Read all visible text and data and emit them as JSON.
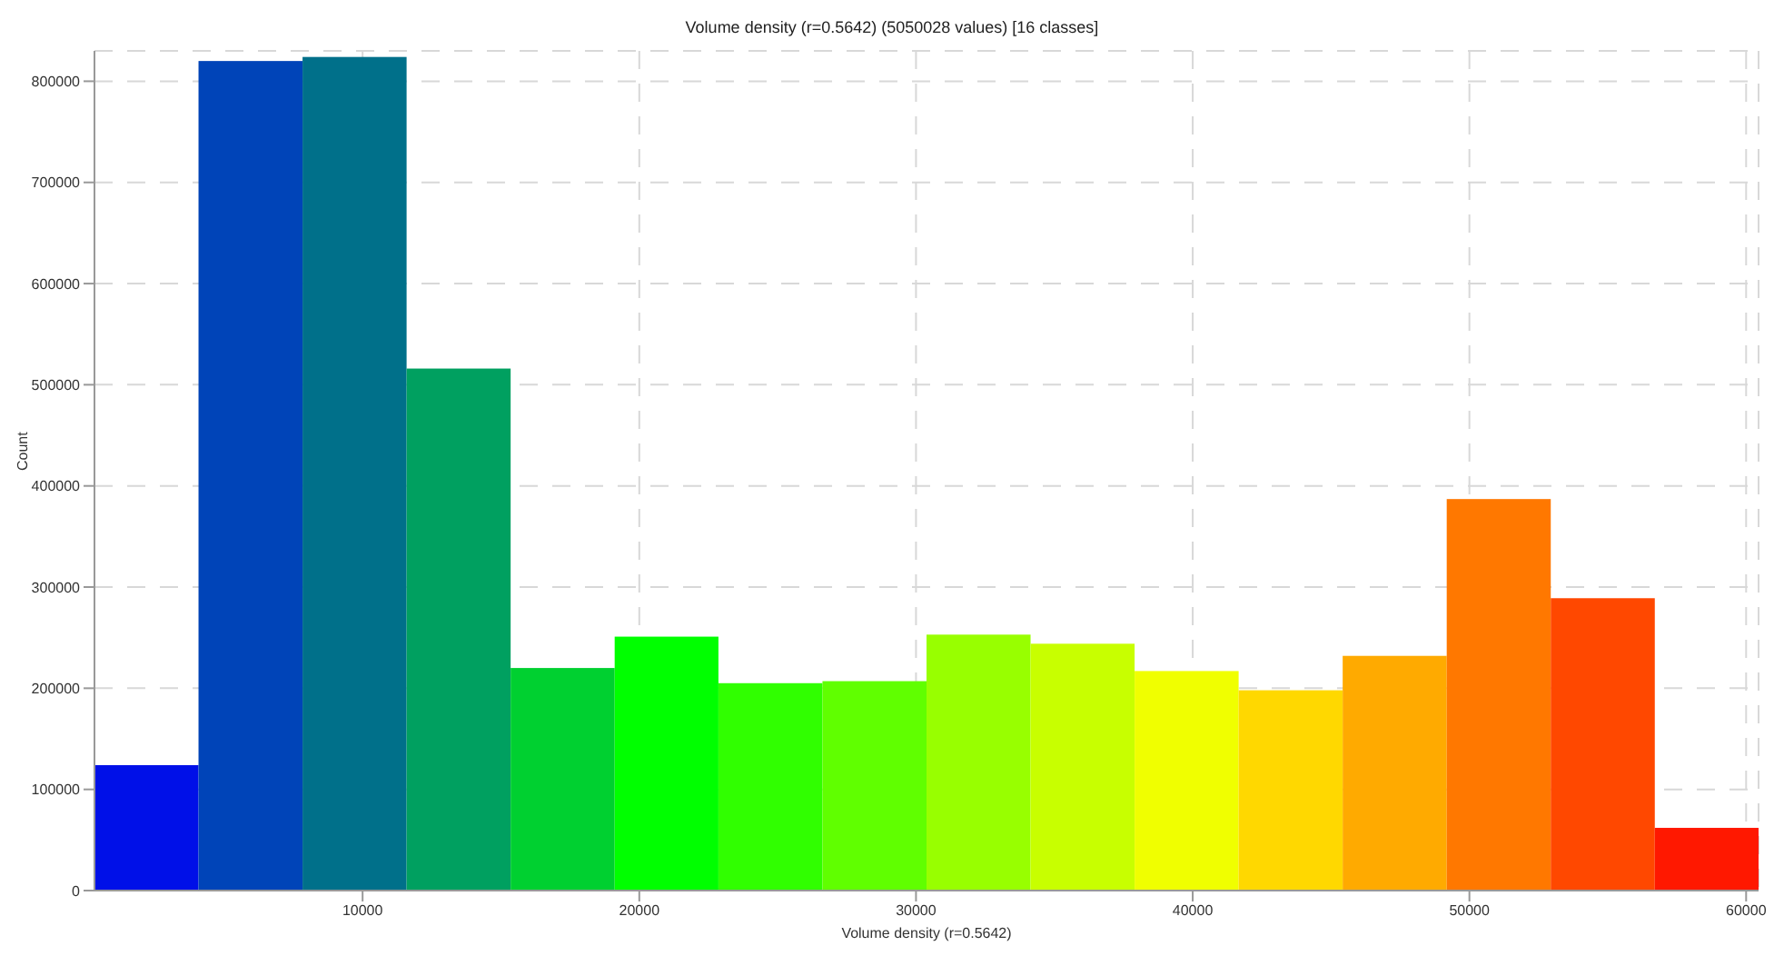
{
  "chart_data": {
    "type": "histogram",
    "title": "Volume density (r=0.5642) (5050028 values)  [16 classes]",
    "xlabel": "Volume density (r=0.5642)",
    "ylabel": "Count",
    "bins": [
      310,
      4070,
      7830,
      11590,
      15350,
      19110,
      22860,
      26620,
      30380,
      34140,
      37900,
      41660,
      45420,
      49180,
      52940,
      56700,
      60450
    ],
    "values": [
      124000,
      820000,
      824000,
      516000,
      220000,
      251000,
      205000,
      207000,
      253000,
      244000,
      217000,
      198000,
      232000,
      387000,
      289000,
      62000
    ],
    "colors": [
      "#0010e8",
      "#0044b8",
      "#00708a",
      "#00a060",
      "#00d030",
      "#00ff00",
      "#30ff00",
      "#60ff00",
      "#98ff00",
      "#c8ff00",
      "#f0ff00",
      "#ffd800",
      "#ffaa00",
      "#ff7800",
      "#ff4800",
      "#ff1800"
    ],
    "xlim": [
      310,
      60450
    ],
    "xticks": [
      10000,
      20000,
      30000,
      40000,
      50000,
      60000
    ],
    "ylim": [
      0,
      830000
    ],
    "yticks": [
      0,
      100000,
      200000,
      300000,
      400000,
      500000,
      600000,
      700000,
      800000
    ],
    "grid": true
  }
}
